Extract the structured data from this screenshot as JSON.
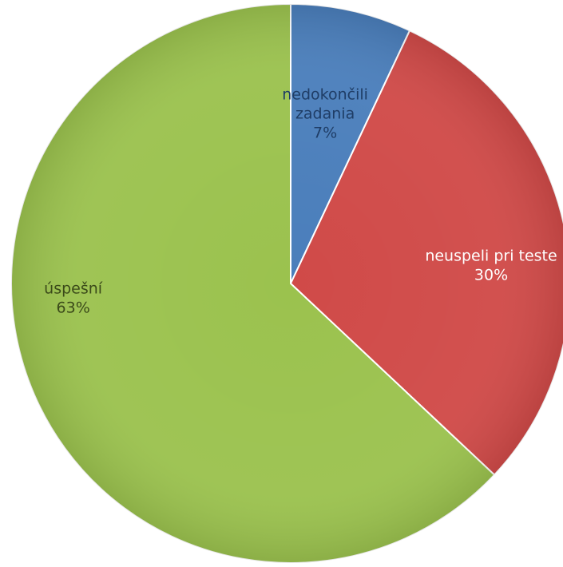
{
  "chart_data": {
    "type": "pie",
    "start_angle_deg": 0,
    "direction": "clockwise",
    "slices": [
      {
        "label": "nedokončili zadania",
        "value": 7,
        "display": "7%",
        "color": "#4a7ebb",
        "label_color": "#1f3d66"
      },
      {
        "label": "neuspeli pri teste",
        "value": 30,
        "display": "30%",
        "color": "#d04a48",
        "label_color": "#ffffff"
      },
      {
        "label": "úspešní",
        "value": 63,
        "display": "63%",
        "color": "#9bc24e",
        "label_color": "#3b4a1a"
      }
    ]
  }
}
